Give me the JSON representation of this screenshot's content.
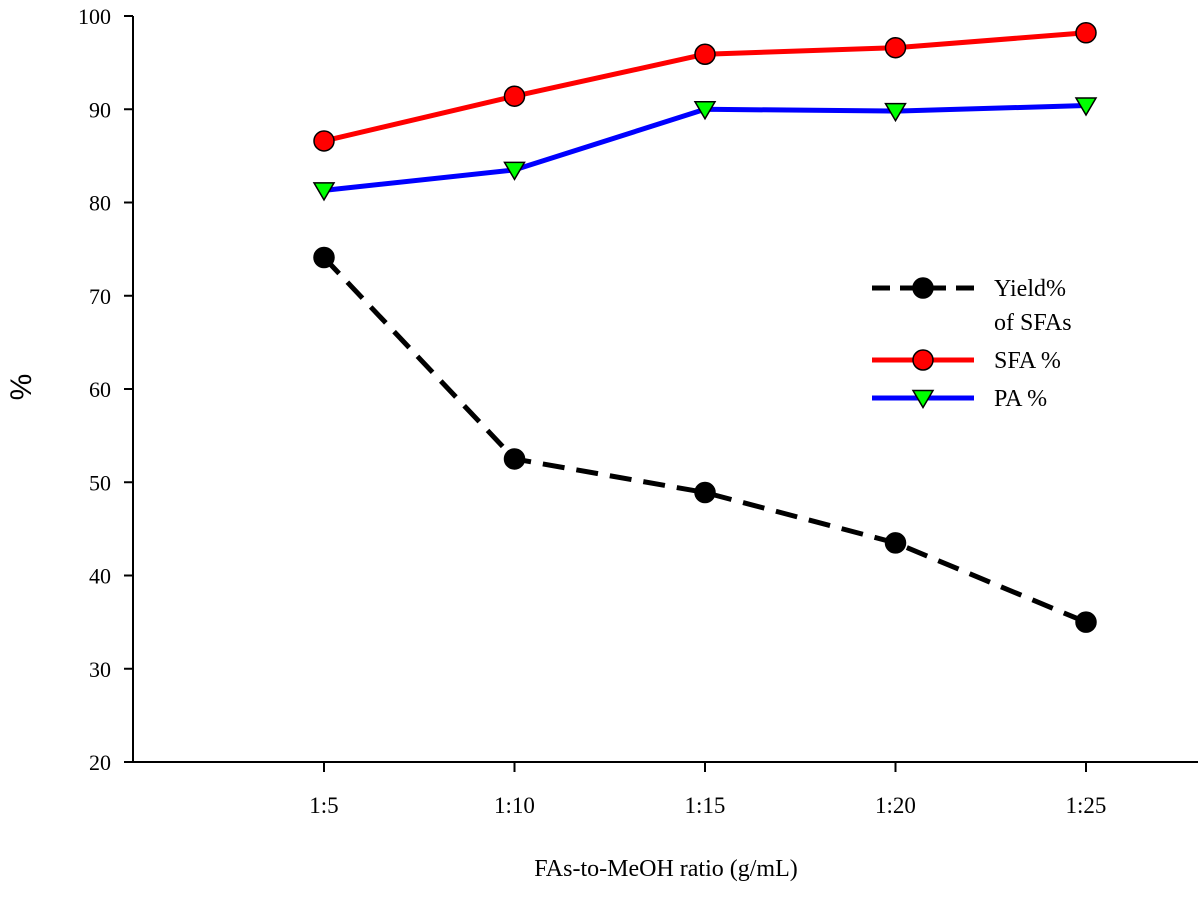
{
  "chart_data": {
    "type": "line",
    "title": "",
    "xlabel": "FAs-to-MeOH ratio (g/mL)",
    "ylabel": "%",
    "categories": [
      "1:5",
      "1:10",
      "1:15",
      "1:20",
      "1:25"
    ],
    "ylim": [
      20,
      100
    ],
    "yticks": [
      20,
      30,
      40,
      50,
      60,
      70,
      80,
      90,
      100
    ],
    "grid": false,
    "legend_position": "right",
    "series": [
      {
        "name": "Yield% of SFAs",
        "name_lines": [
          "Yield%",
          "of SFAs"
        ],
        "values": [
          74.1,
          52.5,
          48.9,
          43.5,
          35.0
        ],
        "color": "#000000",
        "marker_fill": "#000000",
        "marker": "circle",
        "line_style": "dashed"
      },
      {
        "name": "SFA %",
        "name_lines": [
          "SFA %"
        ],
        "values": [
          86.6,
          91.4,
          95.9,
          96.6,
          98.2
        ],
        "color": "#ff0000",
        "marker_fill": "#ff0000",
        "marker": "circle",
        "line_style": "solid"
      },
      {
        "name": "PA %",
        "name_lines": [
          "PA %"
        ],
        "values": [
          81.3,
          83.5,
          90.0,
          89.8,
          90.4
        ],
        "color": "#0000ff",
        "marker_fill": "#00ff00",
        "marker": "triangle-down",
        "line_style": "solid"
      }
    ]
  }
}
